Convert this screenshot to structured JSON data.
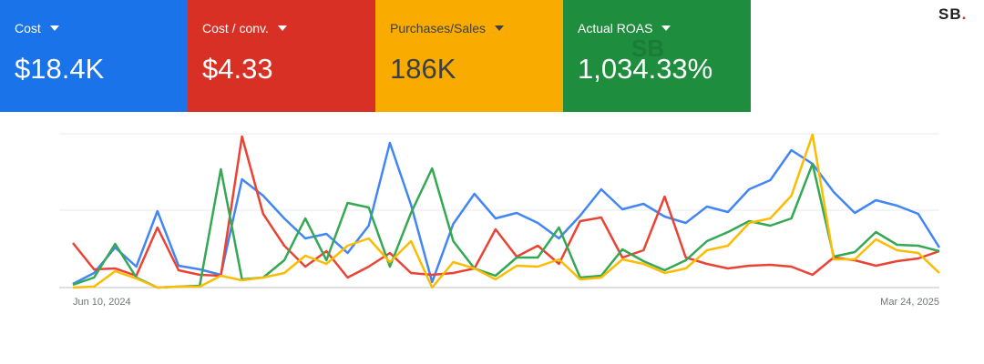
{
  "cards": [
    {
      "label": "Cost",
      "value": "$18.4K",
      "color": "#1a73e8"
    },
    {
      "label": "Cost / conv.",
      "value": "$4.33",
      "color": "#d93025"
    },
    {
      "label": "Purchases/Sales",
      "value": "186K",
      "color": "#f9ab00"
    },
    {
      "label": "Actual ROAS",
      "value": "1,034.33%",
      "color": "#1e8e3e"
    }
  ],
  "watermark": "SB",
  "logo": {
    "text": "SB",
    "dot": "."
  },
  "chart_data": {
    "type": "line",
    "categories": [
      "Jun 10, 2024",
      null,
      null,
      null,
      null,
      null,
      null,
      null,
      null,
      null,
      null,
      null,
      null,
      null,
      null,
      null,
      null,
      null,
      null,
      null,
      null,
      null,
      null,
      null,
      null,
      null,
      null,
      null,
      null,
      null,
      null,
      null,
      null,
      null,
      null,
      null,
      null,
      null,
      null,
      null,
      null,
      "Mar 24, 2025"
    ],
    "ylim": [
      0,
      169
    ],
    "grid_lines": [
      0,
      85,
      169
    ],
    "series": [
      {
        "color": "#4285f4",
        "values": [
          4,
          16,
          44,
          23,
          84,
          24,
          20,
          14,
          119,
          101,
          76,
          54,
          59,
          38,
          68,
          159,
          91,
          6,
          70,
          103,
          76,
          82,
          71,
          54,
          79,
          108,
          86,
          92,
          78,
          71,
          89,
          83,
          108,
          118,
          151,
          136,
          105,
          82,
          96,
          90,
          81,
          44
        ]
      },
      {
        "color": "#ea4335",
        "values": [
          49,
          20,
          21,
          13,
          66,
          19,
          14,
          13,
          166,
          81,
          46,
          23,
          40,
          11,
          23,
          38,
          16,
          14,
          16,
          21,
          64,
          34,
          46,
          26,
          73,
          77,
          33,
          41,
          100,
          33,
          26,
          21,
          24,
          25,
          23,
          14,
          33,
          30,
          24,
          29,
          32,
          40
        ]
      },
      {
        "color": "#34a853",
        "values": [
          3,
          11,
          48,
          11,
          0,
          1,
          2,
          130,
          9,
          11,
          30,
          76,
          30,
          93,
          88,
          23,
          82,
          131,
          51,
          21,
          13,
          33,
          33,
          66,
          11,
          13,
          42,
          29,
          19,
          30,
          51,
          61,
          73,
          68,
          76,
          136,
          34,
          39,
          61,
          47,
          46,
          40
        ]
      },
      {
        "color": "#fbbc04",
        "values": [
          0,
          1,
          18,
          10,
          0,
          1,
          1,
          13,
          8,
          11,
          16,
          35,
          26,
          46,
          54,
          28,
          51,
          0,
          28,
          21,
          9,
          24,
          23,
          31,
          9,
          11,
          31,
          26,
          16,
          21,
          41,
          46,
          71,
          76,
          101,
          168,
          31,
          31,
          53,
          41,
          38,
          16
        ]
      }
    ]
  }
}
